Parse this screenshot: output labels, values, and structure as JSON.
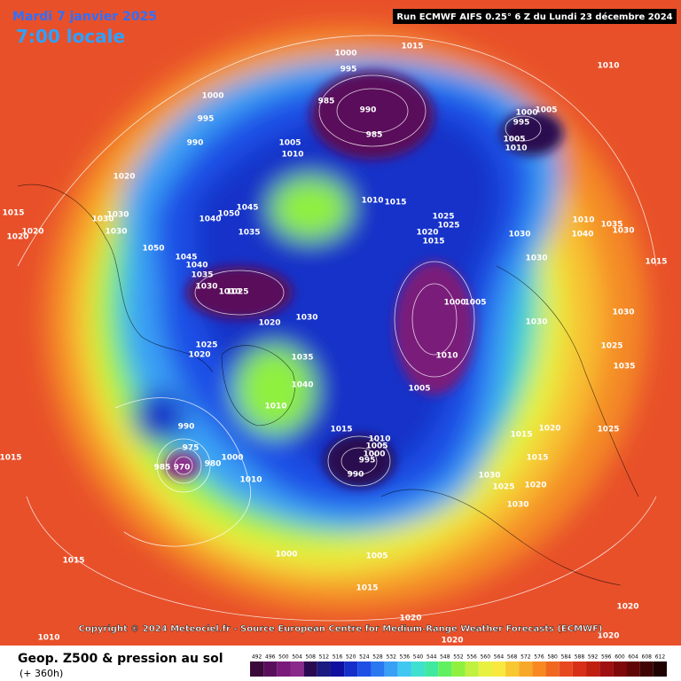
{
  "header": {
    "date": "Mardi 7 janvier 2025",
    "time": "7:00 locale",
    "run": "Run ECMWF AIFS 0.25° 6 Z du Lundi 23 décembre 2024"
  },
  "footer": {
    "copyright": "Copyright © 2024 Meteociel.fr - Source European Centre for Medium-Range Weather Forecasts (ECMWF)",
    "legend_title": "Geop. Z500 & pression au sol",
    "legend_subtitle": "(+ 360h)"
  },
  "colorbar": {
    "ticks": [
      492,
      496,
      500,
      504,
      508,
      512,
      516,
      520,
      524,
      528,
      532,
      536,
      540,
      544,
      548,
      552,
      556,
      560,
      564,
      568,
      572,
      576,
      580,
      584,
      588,
      592,
      596,
      600,
      604,
      608,
      612
    ],
    "colors": [
      "#3a0a3a",
      "#5a0f5a",
      "#7a1a7a",
      "#8a2a8a",
      "#2a0a50",
      "#1a1a80",
      "#1010a0",
      "#1530c8",
      "#1e50e6",
      "#2a78f0",
      "#3aa0f5",
      "#40c8f0",
      "#40e0d0",
      "#40e8a0",
      "#60f060",
      "#90f040",
      "#c0f040",
      "#e8f040",
      "#f8e840",
      "#f8c830",
      "#f8a828",
      "#f88820",
      "#f06820",
      "#e84820",
      "#d83018",
      "#c02010",
      "#a01010",
      "#800808",
      "#600606",
      "#400404",
      "#200202"
    ]
  },
  "isobar_labels": [
    "1015",
    "1000",
    "995",
    "1010",
    "985",
    "990",
    "985",
    "1000",
    "995",
    "990",
    "1005",
    "1010",
    "1000",
    "1005",
    "995",
    "1005",
    "1010",
    "1020",
    "1015",
    "1030",
    "1030",
    "1020",
    "1020",
    "1030",
    "1045",
    "1040",
    "1050",
    "1035",
    "1010",
    "1015",
    "1025",
    "1025",
    "1020",
    "1015",
    "1030",
    "1050",
    "1045",
    "1040",
    "1035",
    "1030",
    "1010",
    "1025",
    "1030",
    "1020",
    "1000",
    "1005",
    "1030",
    "1010",
    "1035",
    "1030",
    "1040",
    "1015",
    "1025",
    "1020",
    "1035",
    "1010",
    "1040",
    "1010",
    "1005",
    "1030",
    "990",
    "1015",
    "1010",
    "1005",
    "1000",
    "995",
    "990",
    "975",
    "985",
    "970",
    "980",
    "1000",
    "1010",
    "1015",
    "1020",
    "1015",
    "1030",
    "1025",
    "1020",
    "1030",
    "1015",
    "1015",
    "1000",
    "1005",
    "1015",
    "1020",
    "1020",
    "1020",
    "1010",
    "1020",
    "1025",
    "1030",
    "1025",
    "1035"
  ]
}
